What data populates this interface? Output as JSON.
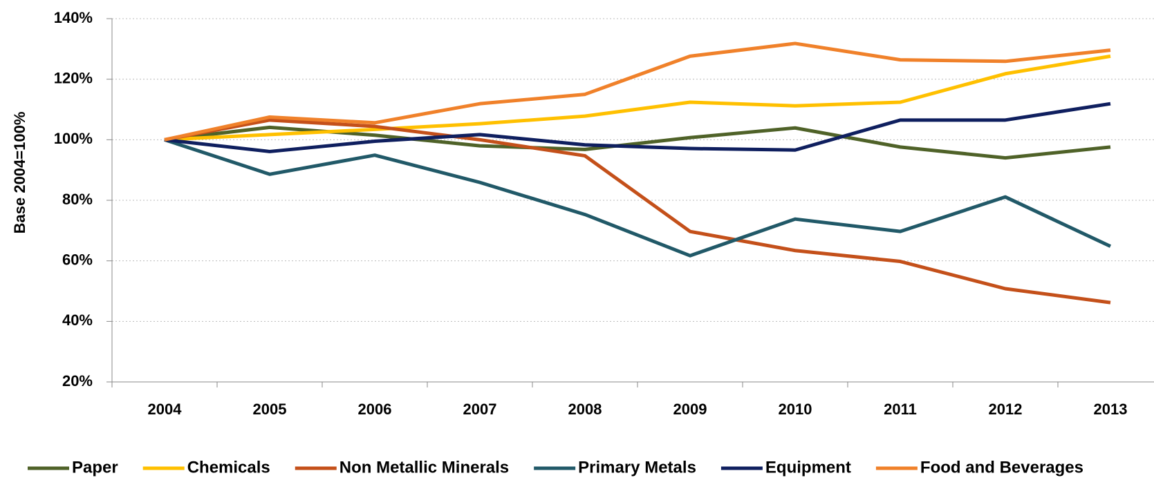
{
  "chart_data": {
    "type": "line",
    "y_label": "Base 2004=100%",
    "categories": [
      "2004",
      "2005",
      "2006",
      "2007",
      "2008",
      "2009",
      "2010",
      "2011",
      "2012",
      "2013"
    ],
    "ylim": [
      20,
      140
    ],
    "yticks": [
      {
        "value": 20,
        "label": "20%"
      },
      {
        "value": 40,
        "label": "40%"
      },
      {
        "value": 60,
        "label": "60%"
      },
      {
        "value": 80,
        "label": "80%"
      },
      {
        "value": 100,
        "label": "100%"
      },
      {
        "value": 120,
        "label": "120%"
      },
      {
        "value": 140,
        "label": "140%"
      }
    ],
    "grid": true,
    "legend": "bottom",
    "series": [
      {
        "name": "Paper",
        "color": "#4f6228",
        "values": [
          100,
          104.1,
          101.5,
          98,
          96.8,
          100.7,
          103.9,
          97.6,
          94,
          97.6
        ]
      },
      {
        "name": "Chemicals",
        "color": "#ffc000",
        "values": [
          100,
          101.7,
          103.4,
          105.3,
          107.8,
          112.4,
          111.2,
          112.4,
          121.8,
          127.6
        ]
      },
      {
        "name": "Non Metallic Minerals",
        "color": "#c4501a",
        "values": [
          100,
          106.5,
          104.4,
          100,
          94.7,
          69.7,
          63.4,
          59.8,
          50.8,
          46.2
        ]
      },
      {
        "name": "Primary Metals",
        "color": "#215968",
        "values": [
          100,
          88.6,
          94.9,
          85.9,
          75.3,
          61.7,
          73.8,
          69.7,
          81.1,
          64.8
        ]
      },
      {
        "name": "Equipment",
        "color": "#0f1f5f",
        "values": [
          100,
          96.1,
          99.5,
          101.7,
          98.3,
          97.1,
          96.6,
          106.5,
          106.5,
          111.9
        ]
      },
      {
        "name": "Food and Beverages",
        "color": "#f0812a",
        "values": [
          100,
          107.5,
          105.6,
          111.9,
          115,
          127.6,
          131.8,
          126.4,
          125.9,
          129.6
        ]
      }
    ]
  }
}
